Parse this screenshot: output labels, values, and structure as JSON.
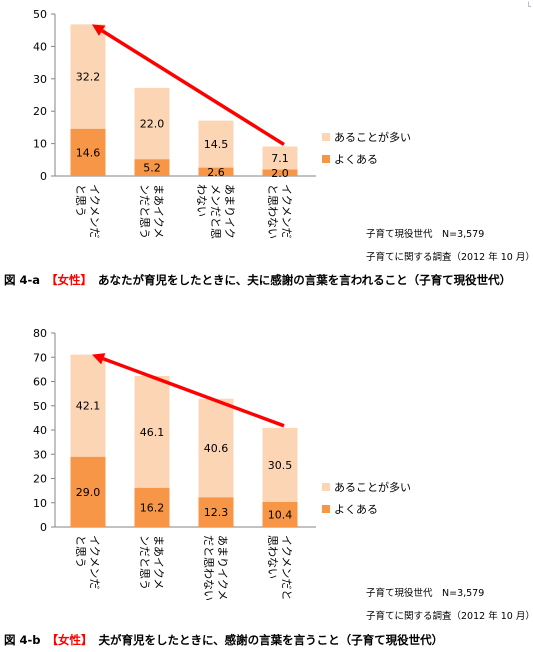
{
  "corner_mark": "└",
  "chart_data": [
    {
      "type": "bar",
      "stacked": true,
      "ylim": [
        0,
        50
      ],
      "yticks": [
        0,
        10,
        20,
        30,
        40,
        50
      ],
      "categories": [
        "イクメンだと思う",
        "まあイクメンだと思う",
        "あまりイクメンだと思わない",
        "イクメンだと思わない"
      ],
      "category_lines": [
        [
          "イクメンだ",
          "と思う"
        ],
        [
          "まあイクメ",
          "ンだと思う"
        ],
        [
          "あまりイク",
          "メンだと思",
          "わない"
        ],
        [
          "イクメンだ",
          "と思わない"
        ]
      ],
      "series": [
        {
          "name": "よくある",
          "color": "#f79646",
          "values": [
            14.6,
            5.2,
            2.6,
            2.0
          ]
        },
        {
          "name": "あることが多い",
          "color": "#fcd5b5",
          "values": [
            32.2,
            22.0,
            14.5,
            7.1
          ]
        }
      ],
      "legend": "right",
      "annotation": "red arrow from the 4th bar up to the 1st bar top",
      "notes": [
        "子育て現役世代　N=3,579",
        "子育てに関する調査（2012 年 10 月）"
      ],
      "caption": {
        "fig": "図 4-a",
        "tag": "【女性】",
        "text": "あなたが育児をしたときに、夫に感謝の言葉を言われること（子育て現役世代）"
      }
    },
    {
      "type": "bar",
      "stacked": true,
      "ylim": [
        0,
        80
      ],
      "yticks": [
        0,
        10,
        20,
        30,
        40,
        50,
        60,
        70,
        80
      ],
      "categories": [
        "イクメンだと思う",
        "まあイクメンだと思う",
        "あまりイクメンだと思わない",
        "イクメンだと思わない"
      ],
      "category_lines": [
        [
          "イクメンだ",
          "と思う"
        ],
        [
          "まあイクメ",
          "ンだと思う"
        ],
        [
          "あまりイクメン",
          "だと思わない"
        ],
        [
          "イクメンだと",
          "思わない"
        ]
      ],
      "series": [
        {
          "name": "よくある",
          "color": "#f79646",
          "values": [
            29.0,
            16.2,
            12.3,
            10.4
          ]
        },
        {
          "name": "あることが多い",
          "color": "#fcd5b5",
          "values": [
            42.1,
            46.1,
            40.6,
            30.5
          ]
        }
      ],
      "legend": "right",
      "annotation": "red arrow from the 4th bar up to the 1st bar top",
      "notes": [
        "子育て現役世代　N=3,579",
        "子育てに関する調査（2012 年 10 月）"
      ],
      "caption": {
        "fig": "図 4-b",
        "tag": "【女性】",
        "text": "夫が育児をしたときに、感謝の言葉を言うこと（子育て現役世代）"
      }
    }
  ]
}
